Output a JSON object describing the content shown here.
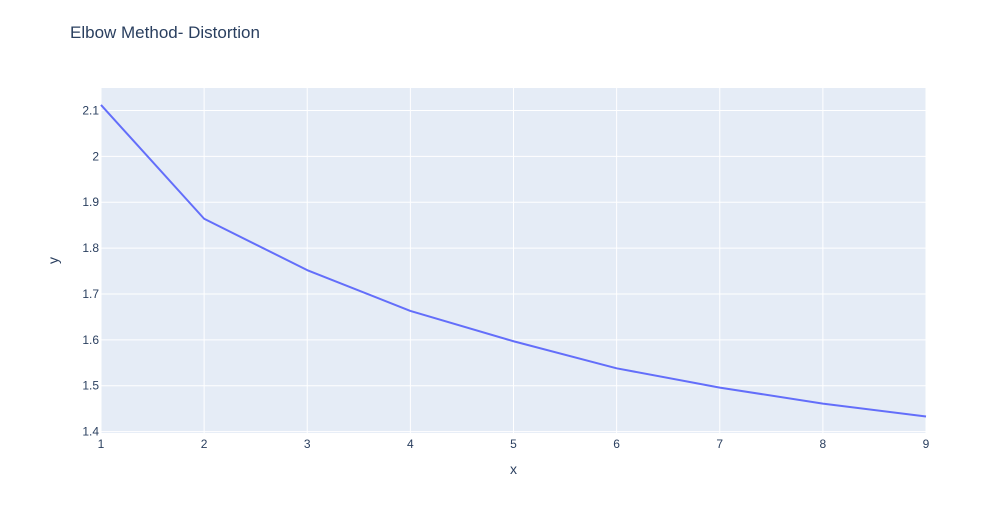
{
  "chart_data": {
    "type": "line",
    "title": "Elbow Method- Distortion",
    "xlabel": "x",
    "ylabel": "y",
    "x": [
      1,
      2,
      3,
      4,
      5,
      6,
      7,
      8,
      9
    ],
    "series": [
      {
        "values": [
          2.112,
          1.864,
          1.752,
          1.663,
          1.597,
          1.538,
          1.496,
          1.461,
          1.433
        ]
      }
    ],
    "xlim": [
      1,
      9
    ],
    "ylim": [
      1.397,
      2.149
    ],
    "xticks": [
      1,
      2,
      3,
      4,
      5,
      6,
      7,
      8,
      9
    ],
    "xtick_labels": [
      "1",
      "2",
      "3",
      "4",
      "5",
      "6",
      "7",
      "8",
      "9"
    ],
    "yticks": [
      1.4,
      1.5,
      1.6,
      1.7,
      1.8,
      1.9,
      2.0,
      2.1
    ],
    "ytick_labels": [
      "1.4",
      "1.5",
      "1.6",
      "1.7",
      "1.8",
      "1.9",
      "2",
      "2.1"
    ],
    "grid": true,
    "legend": "none"
  },
  "colors": {
    "plot_background": "#e5ecf6",
    "grid": "#ffffff",
    "line": "#636efa",
    "text": "#2a3f5f"
  }
}
